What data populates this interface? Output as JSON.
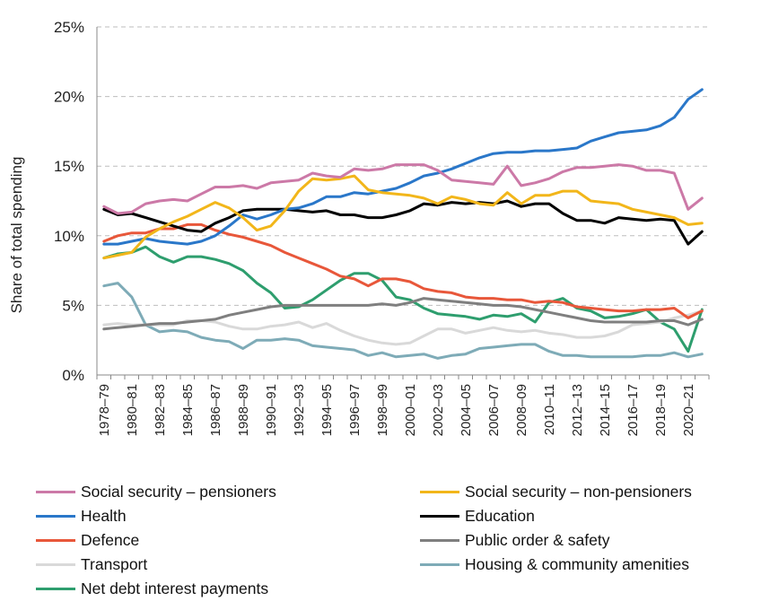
{
  "chart_data": {
    "type": "line",
    "title": "",
    "xlabel": "",
    "ylabel": "Share of total spending",
    "ylim": [
      0,
      25
    ],
    "y_ticks": [
      "0%",
      "5%",
      "10%",
      "15%",
      "20%",
      "25%"
    ],
    "grid": "horizontal dashed",
    "legend_position": "bottom",
    "categories": [
      "1978–79",
      "1979–80",
      "1980–81",
      "1981–82",
      "1982–83",
      "1983–84",
      "1984–85",
      "1985–86",
      "1986–87",
      "1987–88",
      "1988–89",
      "1989–90",
      "1990–91",
      "1991–92",
      "1992–93",
      "1993–94",
      "1994–95",
      "1995–96",
      "1996–97",
      "1997–98",
      "1998–99",
      "1999–00",
      "2000–01",
      "2001–02",
      "2002–03",
      "2003–04",
      "2004–05",
      "2005–06",
      "2006–07",
      "2007–08",
      "2008–09",
      "2009–10",
      "2010–11",
      "2011–12",
      "2012–13",
      "2013–14",
      "2014–15",
      "2015–16",
      "2016–17",
      "2017–18",
      "2018–19",
      "2019–20",
      "2020–21",
      "2021–22"
    ],
    "x_tick_labels": [
      "1978–79",
      "1980–81",
      "1982–83",
      "1984–85",
      "1986–87",
      "1988–89",
      "1990–91",
      "1992–93",
      "1994–95",
      "1996–97",
      "1998–99",
      "2000–01",
      "2002–03",
      "2004–05",
      "2006–07",
      "2008–09",
      "2010–11",
      "2012–13",
      "2014–15",
      "2016–17",
      "2018–19",
      "2020–21"
    ],
    "series": [
      {
        "name": "Social security – pensioners",
        "color": "#cc79a7",
        "values": [
          12.1,
          11.6,
          11.7,
          12.3,
          12.5,
          12.6,
          12.5,
          13.0,
          13.5,
          13.5,
          13.6,
          13.4,
          13.8,
          13.9,
          14.0,
          14.5,
          14.3,
          14.2,
          14.8,
          14.7,
          14.8,
          15.1,
          15.1,
          15.1,
          14.7,
          14.0,
          13.9,
          13.8,
          13.7,
          15.0,
          13.6,
          13.8,
          14.1,
          14.6,
          14.9,
          14.9,
          15.0,
          15.1,
          15.0,
          14.7,
          14.7,
          14.5,
          11.9,
          12.7
        ]
      },
      {
        "name": "Social security – non-pensioners",
        "color": "#f2b61a",
        "values": [
          8.4,
          8.6,
          8.8,
          9.9,
          10.5,
          11.0,
          11.4,
          11.9,
          12.4,
          12.0,
          11.3,
          10.4,
          10.7,
          11.8,
          13.2,
          14.1,
          14.0,
          14.1,
          14.3,
          13.3,
          13.1,
          13.0,
          12.9,
          12.7,
          12.3,
          12.8,
          12.6,
          12.3,
          12.2,
          13.1,
          12.3,
          12.9,
          12.9,
          13.2,
          13.2,
          12.5,
          12.4,
          12.3,
          11.9,
          11.7,
          11.5,
          11.3,
          10.8,
          10.9
        ]
      },
      {
        "name": "Health",
        "color": "#2a77c9",
        "values": [
          9.4,
          9.4,
          9.6,
          9.8,
          9.6,
          9.5,
          9.4,
          9.6,
          10.0,
          10.7,
          11.5,
          11.2,
          11.5,
          11.9,
          12.0,
          12.3,
          12.8,
          12.8,
          13.1,
          13.0,
          13.2,
          13.4,
          13.8,
          14.3,
          14.5,
          14.8,
          15.2,
          15.6,
          15.9,
          16.0,
          16.0,
          16.1,
          16.1,
          16.2,
          16.3,
          16.8,
          17.1,
          17.4,
          17.5,
          17.6,
          17.9,
          18.5,
          19.8,
          20.5
        ]
      },
      {
        "name": "Education",
        "color": "#000000",
        "values": [
          11.9,
          11.5,
          11.6,
          11.3,
          11.0,
          10.7,
          10.4,
          10.3,
          10.9,
          11.3,
          11.8,
          11.9,
          11.9,
          11.9,
          11.8,
          11.7,
          11.8,
          11.5,
          11.5,
          11.3,
          11.3,
          11.5,
          11.8,
          12.3,
          12.2,
          12.4,
          12.3,
          12.4,
          12.3,
          12.5,
          12.1,
          12.3,
          12.3,
          11.6,
          11.1,
          11.1,
          10.9,
          11.3,
          11.2,
          11.1,
          11.2,
          11.1,
          9.4,
          10.3
        ]
      },
      {
        "name": "Defence",
        "color": "#e8573a",
        "values": [
          9.6,
          10.0,
          10.2,
          10.2,
          10.5,
          10.5,
          10.8,
          10.8,
          10.4,
          10.1,
          9.9,
          9.6,
          9.3,
          8.8,
          8.4,
          8.0,
          7.6,
          7.1,
          6.9,
          6.4,
          6.9,
          6.9,
          6.7,
          6.2,
          6.0,
          5.9,
          5.6,
          5.5,
          5.5,
          5.4,
          5.4,
          5.2,
          5.3,
          5.2,
          4.9,
          4.8,
          4.7,
          4.6,
          4.6,
          4.7,
          4.7,
          4.8,
          4.1,
          4.6
        ]
      },
      {
        "name": "Public order & safety",
        "color": "#7f7f7f",
        "values": [
          3.3,
          3.4,
          3.5,
          3.6,
          3.7,
          3.7,
          3.8,
          3.9,
          4.0,
          4.3,
          4.5,
          4.7,
          4.9,
          5.0,
          5.0,
          5.0,
          5.0,
          5.0,
          5.0,
          5.0,
          5.1,
          5.0,
          5.2,
          5.5,
          5.4,
          5.3,
          5.2,
          5.1,
          5.0,
          5.0,
          4.9,
          4.7,
          4.5,
          4.3,
          4.1,
          3.9,
          3.8,
          3.8,
          3.8,
          3.8,
          3.9,
          3.9,
          3.6,
          4.0
        ]
      },
      {
        "name": "Transport",
        "color": "#d9d9d9",
        "values": [
          3.6,
          3.7,
          3.6,
          3.6,
          3.6,
          3.6,
          3.9,
          3.9,
          3.8,
          3.5,
          3.3,
          3.3,
          3.5,
          3.6,
          3.8,
          3.4,
          3.7,
          3.2,
          2.8,
          2.5,
          2.3,
          2.2,
          2.3,
          2.8,
          3.3,
          3.3,
          3.0,
          3.2,
          3.4,
          3.2,
          3.1,
          3.2,
          3.0,
          2.9,
          2.7,
          2.7,
          2.8,
          3.1,
          3.6,
          3.7,
          3.8,
          4.1,
          4.3,
          4.6
        ]
      },
      {
        "name": "Housing & community amenities",
        "color": "#7eabb7",
        "values": [
          6.4,
          6.6,
          5.6,
          3.6,
          3.1,
          3.2,
          3.1,
          2.7,
          2.5,
          2.4,
          1.9,
          2.5,
          2.5,
          2.6,
          2.5,
          2.1,
          2.0,
          1.9,
          1.8,
          1.4,
          1.6,
          1.3,
          1.4,
          1.5,
          1.2,
          1.4,
          1.5,
          1.9,
          2.0,
          2.1,
          2.2,
          2.2,
          1.7,
          1.4,
          1.4,
          1.3,
          1.3,
          1.3,
          1.3,
          1.4,
          1.4,
          1.6,
          1.3,
          1.5
        ]
      },
      {
        "name": "Net debt interest payments",
        "color": "#2e9e6e",
        "values": [
          8.4,
          8.7,
          8.8,
          9.2,
          8.5,
          8.1,
          8.5,
          8.5,
          8.3,
          8.0,
          7.5,
          6.6,
          5.9,
          4.8,
          4.9,
          5.4,
          6.1,
          6.8,
          7.3,
          7.3,
          6.8,
          5.6,
          5.4,
          4.8,
          4.4,
          4.3,
          4.2,
          4.0,
          4.3,
          4.2,
          4.4,
          3.8,
          5.2,
          5.5,
          4.8,
          4.6,
          4.1,
          4.2,
          4.4,
          4.7,
          3.8,
          3.3,
          1.7,
          4.7
        ]
      }
    ]
  }
}
